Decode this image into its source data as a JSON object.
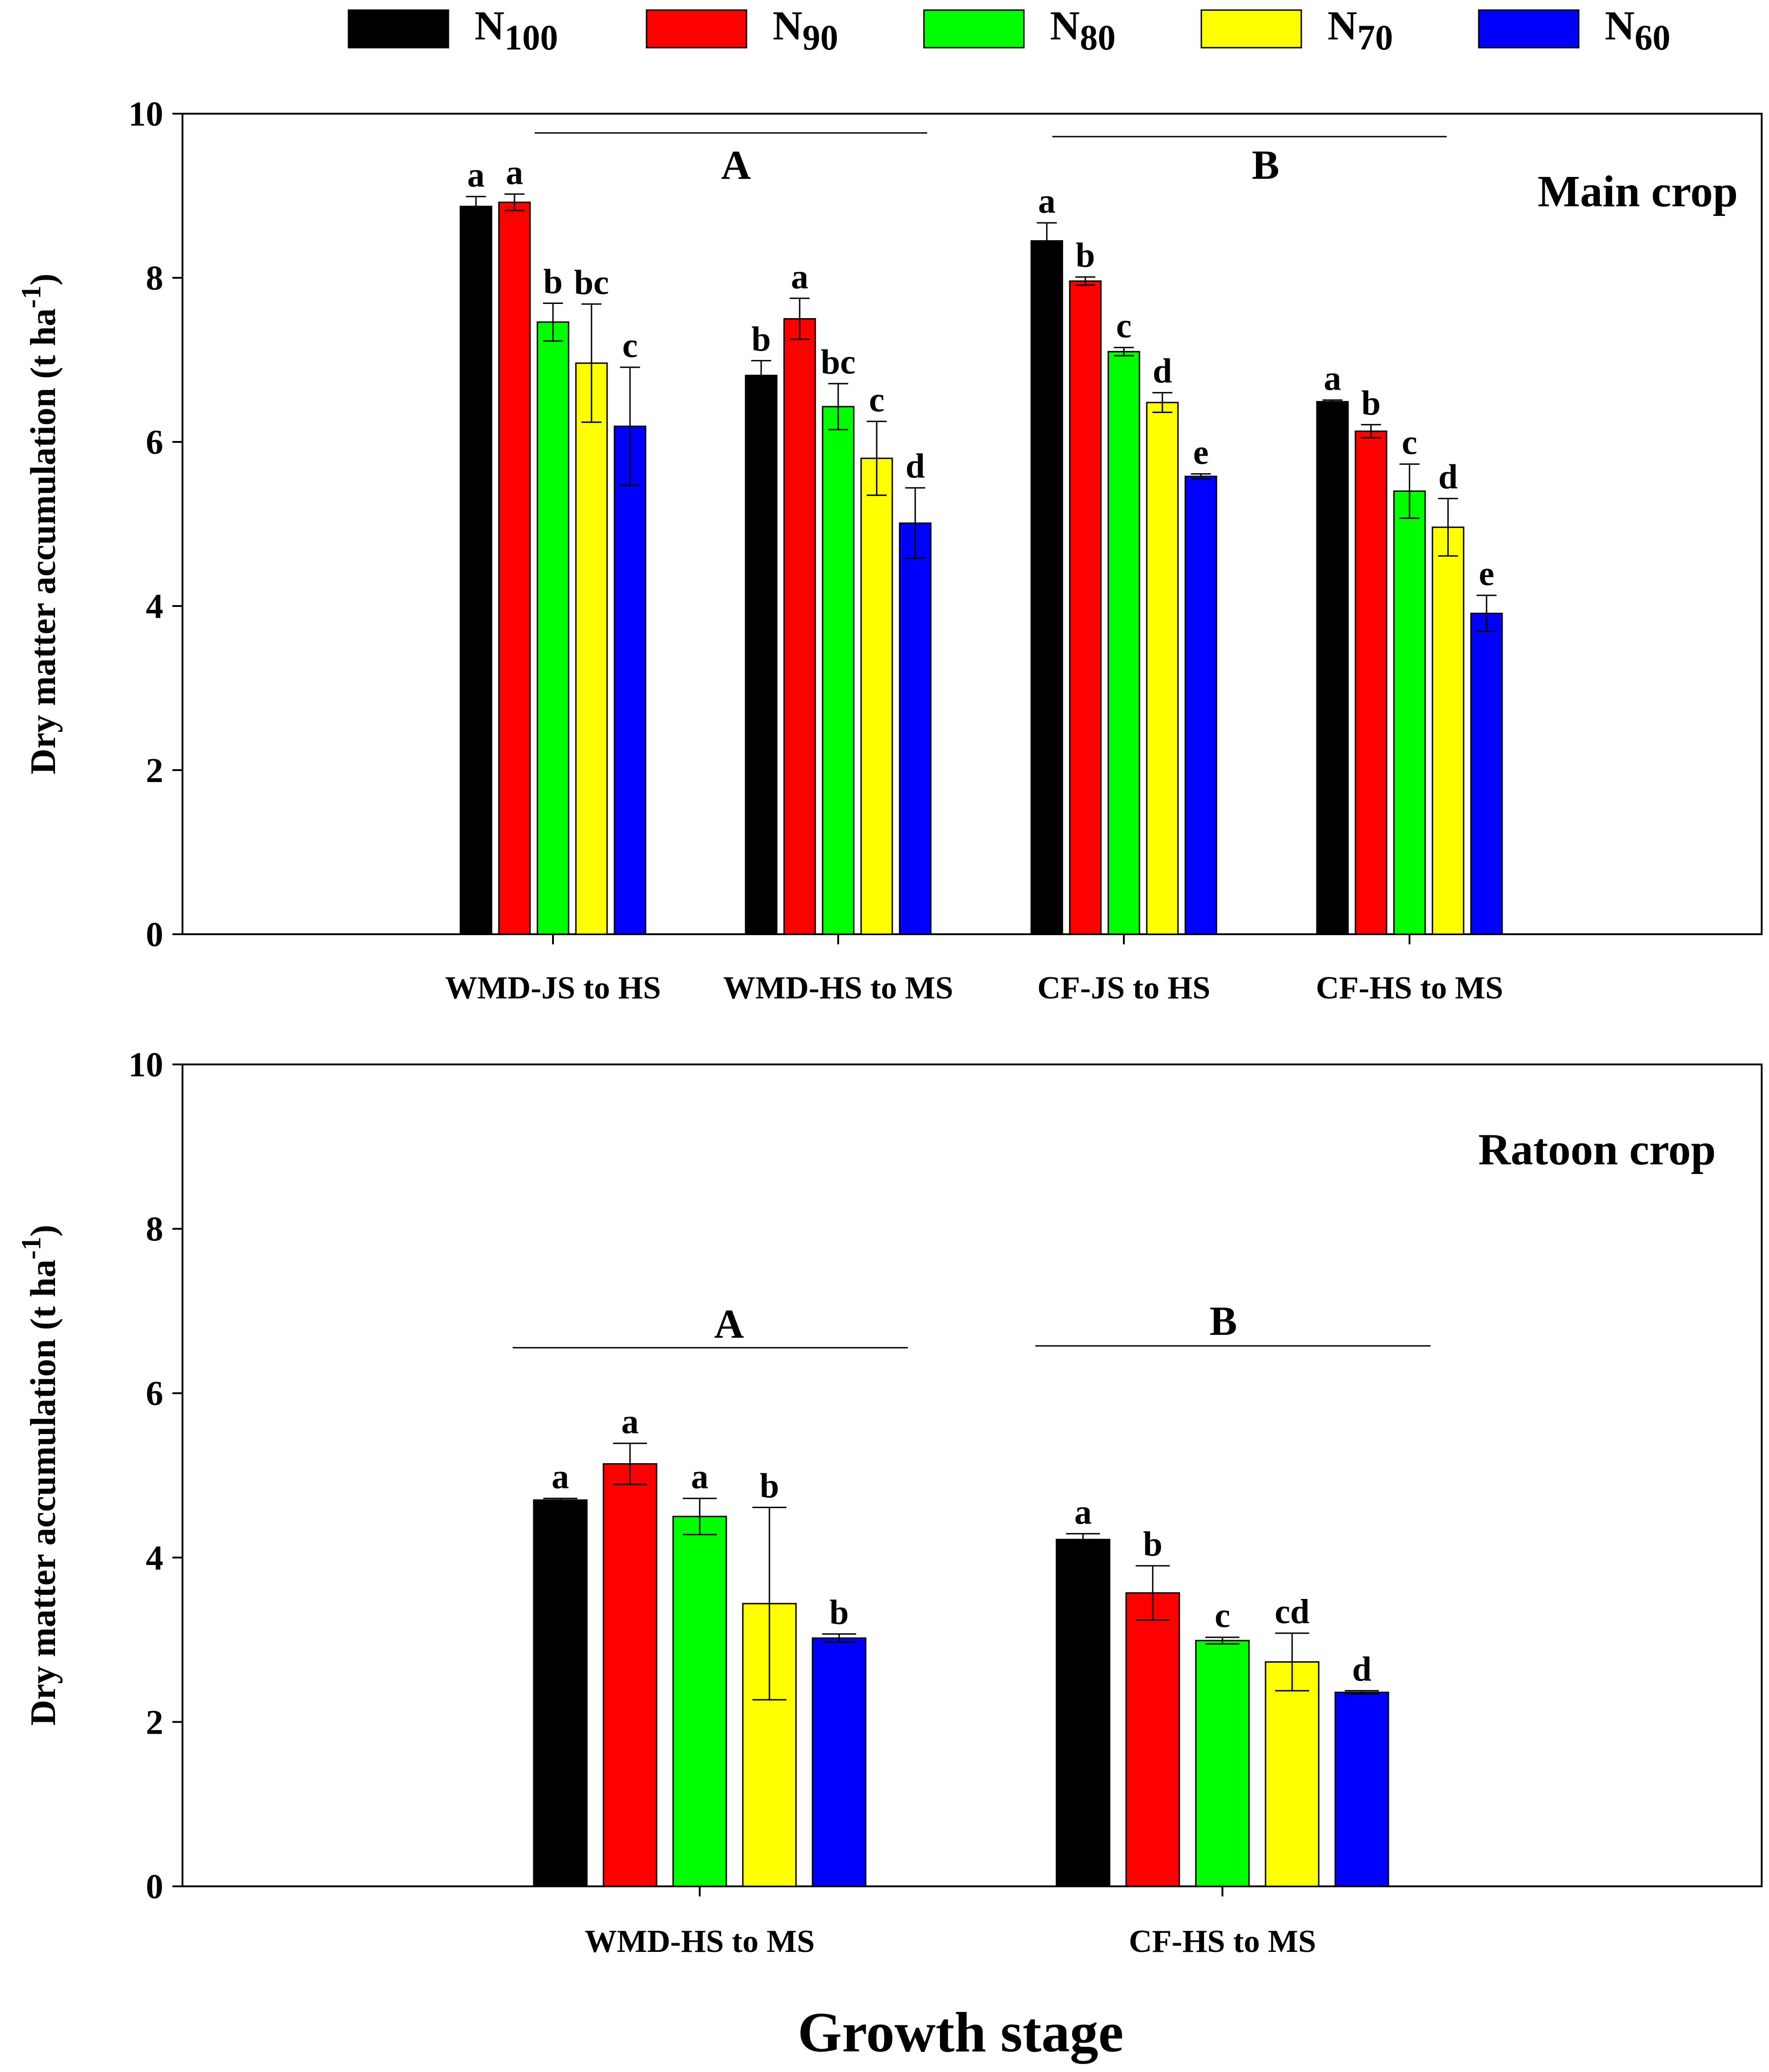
{
  "legend": {
    "items": [
      {
        "base": "N",
        "sub": "100",
        "color": "#000000"
      },
      {
        "base": "N",
        "sub": "90",
        "color": "#ff0000"
      },
      {
        "base": "N",
        "sub": "80",
        "color": "#00ff00"
      },
      {
        "base": "N",
        "sub": "70",
        "color": "#ffff00"
      },
      {
        "base": "N",
        "sub": "60",
        "color": "#0000ff"
      }
    ]
  },
  "xlabel": "Growth stage",
  "chart_data": [
    {
      "type": "bar",
      "panel_title": "Main crop",
      "ylabel": "Dry matter accumulation (t ha",
      "ylabel_superscript": "-1",
      "ylabel_close": ")",
      "ylim": [
        0,
        10
      ],
      "yticks": [
        "0",
        "2",
        "4",
        "6",
        "8",
        "10"
      ],
      "categories": [
        "WMD-JS to HS",
        "WMD-HS to MS",
        "CF-JS to HS",
        "CF-HS to MS"
      ],
      "series": [
        {
          "name": "N100",
          "color": "#000000",
          "values": [
            8.87,
            6.81,
            8.45,
            6.49
          ],
          "errors": [
            0.12,
            0.18,
            0.22,
            0.02
          ],
          "letters": [
            "a",
            "b",
            "a",
            "a"
          ]
        },
        {
          "name": "N90",
          "color": "#ff0000",
          "values": [
            8.92,
            7.5,
            7.96,
            6.13
          ],
          "errors": [
            0.1,
            0.25,
            0.05,
            0.08
          ],
          "letters": [
            "a",
            "a",
            "b",
            "b"
          ]
        },
        {
          "name": "N80",
          "color": "#00ff00",
          "values": [
            7.46,
            6.43,
            7.1,
            5.4
          ],
          "errors": [
            0.23,
            0.28,
            0.05,
            0.33
          ],
          "letters": [
            "b",
            "bc",
            "c",
            "c"
          ]
        },
        {
          "name": "N70",
          "color": "#ffff00",
          "values": [
            6.96,
            5.8,
            6.48,
            4.96
          ],
          "errors": [
            0.72,
            0.45,
            0.12,
            0.35
          ],
          "letters": [
            "bc",
            "c",
            "d",
            "d"
          ]
        },
        {
          "name": "N60",
          "color": "#0000ff",
          "values": [
            6.19,
            5.01,
            5.58,
            3.91
          ],
          "errors": [
            0.72,
            0.43,
            0.03,
            0.22
          ],
          "letters": [
            "c",
            "d",
            "e",
            "e"
          ]
        }
      ],
      "group_labels": [
        {
          "label": "A",
          "covers": [
            0,
            1
          ]
        },
        {
          "label": "B",
          "covers": [
            2,
            3
          ]
        }
      ]
    },
    {
      "type": "bar",
      "panel_title": "Ratoon crop",
      "ylabel": "Dry matter accumulation (t ha",
      "ylabel_superscript": "-1",
      "ylabel_close": ")",
      "ylim": [
        0,
        10
      ],
      "yticks": [
        "0",
        "2",
        "4",
        "6",
        "8",
        "10"
      ],
      "categories": [
        "WMD-HS to MS",
        "CF-HS to MS"
      ],
      "series": [
        {
          "name": "N100",
          "color": "#000000",
          "values": [
            4.7,
            4.22
          ],
          "errors": [
            0.02,
            0.07
          ],
          "letters": [
            "a",
            "a"
          ]
        },
        {
          "name": "N90",
          "color": "#ff0000",
          "values": [
            5.14,
            3.57
          ],
          "errors": [
            0.25,
            0.33
          ],
          "letters": [
            "a",
            "b"
          ]
        },
        {
          "name": "N80",
          "color": "#00ff00",
          "values": [
            4.5,
            2.99
          ],
          "errors": [
            0.22,
            0.04
          ],
          "letters": [
            "a",
            "c"
          ]
        },
        {
          "name": "N70",
          "color": "#ffff00",
          "values": [
            3.44,
            2.73
          ],
          "errors": [
            1.17,
            0.35
          ],
          "letters": [
            "b",
            "cd"
          ]
        },
        {
          "name": "N60",
          "color": "#0000ff",
          "values": [
            3.02,
            2.36
          ],
          "errors": [
            0.05,
            0.02
          ],
          "letters": [
            "b",
            "d"
          ]
        }
      ],
      "group_labels": [
        {
          "label": "A",
          "covers": [
            0
          ]
        },
        {
          "label": "B",
          "covers": [
            1
          ]
        }
      ]
    }
  ]
}
